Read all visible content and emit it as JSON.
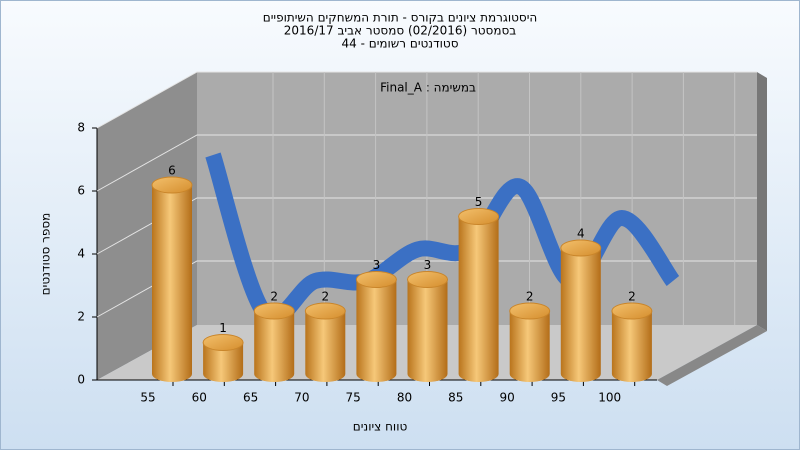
{
  "chart_data": {
    "type": "bar",
    "title_lines": [
      "היסטוגרמת ציונים בקורס - תורת המשחקים השיתופיים",
      "בסמסטר (02/2016) סמסטר אביב 2016/17",
      "סטודנטים רשומים - 44"
    ],
    "annotation": "במשימה : Final_A",
    "x_label": "טווח ציונים",
    "y_label": "מספר סטודנטים",
    "categories": [
      "55",
      "60",
      "65",
      "70",
      "75",
      "80",
      "85",
      "90",
      "95",
      "100"
    ],
    "values": [
      6,
      1,
      2,
      2,
      3,
      3,
      5,
      2,
      4,
      2
    ],
    "color": "#e8a23c",
    "line_color": "#3b70c4",
    "ylim": [
      0,
      8
    ],
    "yticks": [
      0,
      2,
      4,
      6,
      8
    ],
    "grid": true
  }
}
